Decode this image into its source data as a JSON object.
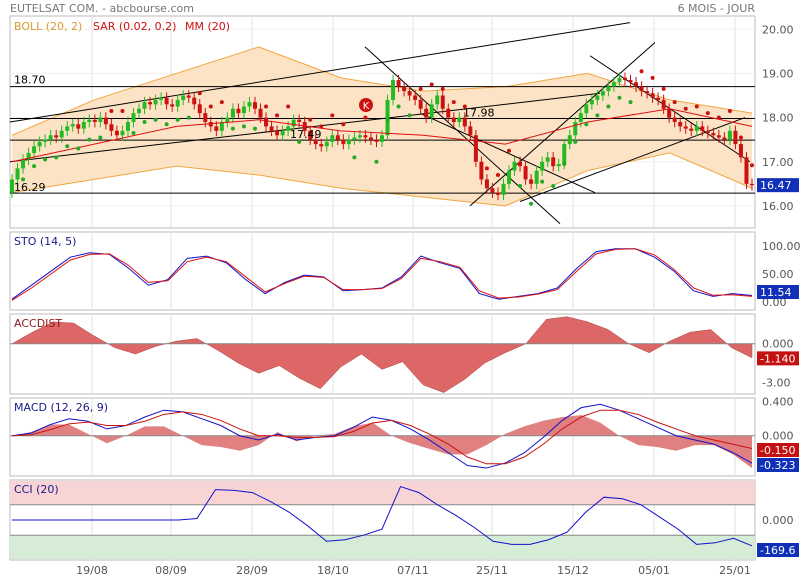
{
  "header": {
    "title": "EUTELSAT COM.",
    "source": "- abcbourse.com",
    "period": "6 MOIS - JOUR"
  },
  "colors": {
    "up": "#22bb22",
    "down": "#cc1111",
    "boll_fill": "#fde3c6",
    "boll_line": "#f0a640",
    "sar": "#cc1111",
    "sar_up": "#22aa22",
    "mm": "#dd1111",
    "sto_k": "#1111cc",
    "sto_d": "#dd1111",
    "accdist_fill": "#dd6666",
    "macd_line": "#1111cc",
    "signal_line": "#cc1111",
    "hist_fill": "#e08080",
    "cci_line": "#1111cc",
    "cci_over": "#f8d4d4",
    "cci_under": "#d6ecd6",
    "badge_blue": "#1030b8",
    "badge_red": "#c41010"
  },
  "x_labels": [
    "19/08",
    "08/09",
    "28/09",
    "18/10",
    "07/11",
    "25/11",
    "15/12",
    "05/01",
    "25/01"
  ],
  "chart_data": [
    {
      "type": "candlestick",
      "title": "EUTELSAT COM.",
      "legend": [
        "BOLL (20, 2)",
        "SAR (0.02, 0.2)",
        "MM (20)"
      ],
      "y_ticks": [
        "20.00",
        "19.00",
        "18.00",
        "17.00",
        "16.00"
      ],
      "ylim": [
        15.5,
        20.3
      ],
      "last_value": "16.47",
      "annotations": [
        "18.70",
        "17.98",
        "17.49",
        "16.29",
        "K"
      ],
      "horizontal_levels": [
        18.7,
        17.98,
        17.49,
        16.29
      ],
      "close": [
        16.6,
        16.85,
        17.05,
        17.2,
        17.35,
        17.45,
        17.5,
        17.6,
        17.55,
        17.7,
        17.8,
        17.85,
        17.75,
        17.9,
        17.95,
        17.9,
        18.0,
        17.85,
        17.7,
        17.6,
        17.7,
        17.9,
        18.1,
        18.2,
        18.35,
        18.3,
        18.4,
        18.45,
        18.3,
        18.25,
        18.4,
        18.5,
        18.45,
        18.3,
        18.1,
        17.9,
        17.8,
        17.7,
        17.9,
        18.0,
        18.2,
        18.1,
        18.25,
        18.35,
        18.2,
        18.0,
        17.8,
        17.7,
        17.6,
        17.7,
        17.8,
        17.95,
        17.9,
        17.7,
        17.5,
        17.4,
        17.35,
        17.45,
        17.6,
        17.5,
        17.4,
        17.5,
        17.55,
        17.6,
        17.55,
        17.5,
        17.45,
        17.6,
        18.4,
        18.85,
        18.7,
        18.6,
        18.5,
        18.4,
        18.2,
        18.0,
        18.3,
        18.5,
        18.2,
        18.0,
        17.9,
        18.0,
        17.8,
        17.6,
        17.0,
        16.6,
        16.4,
        16.3,
        16.25,
        16.5,
        16.8,
        17.0,
        16.9,
        16.6,
        16.5,
        16.8,
        17.0,
        17.1,
        16.9,
        16.95,
        17.4,
        17.6,
        17.9,
        18.1,
        18.3,
        18.4,
        18.5,
        18.6,
        18.7,
        18.8,
        18.9,
        18.85,
        18.8,
        18.7,
        18.6,
        18.55,
        18.45,
        18.4,
        18.2,
        18.0,
        17.9,
        17.8,
        17.75,
        17.7,
        17.8,
        17.7,
        17.65,
        17.6,
        17.55,
        17.5,
        17.7,
        17.4,
        17.1,
        16.5,
        16.47
      ],
      "bollinger": {
        "upper": [
          17.6,
          18.4,
          19.0,
          19.6,
          18.9,
          18.6,
          18.7,
          19.0,
          18.4,
          18.1
        ],
        "middle": [
          17.0,
          17.4,
          17.8,
          17.95,
          17.7,
          17.6,
          17.4,
          17.9,
          18.2,
          17.8
        ],
        "lower": [
          16.3,
          16.6,
          16.9,
          16.7,
          16.4,
          16.2,
          16.0,
          16.8,
          17.2,
          16.4
        ]
      }
    },
    {
      "type": "line",
      "title": "STO (14, 5)",
      "y_ticks": [
        "100.00",
        "50.00",
        "0.00"
      ],
      "ylim": [
        0,
        100
      ],
      "last_value": "11.54",
      "series": [
        {
          "name": "K",
          "values": [
            5,
            30,
            55,
            80,
            88,
            85,
            60,
            30,
            40,
            78,
            82,
            70,
            40,
            15,
            35,
            48,
            45,
            20,
            22,
            25,
            45,
            82,
            70,
            60,
            15,
            5,
            10,
            15,
            25,
            60,
            90,
            95,
            95,
            80,
            55,
            20,
            10,
            15,
            11.54
          ]
        },
        {
          "name": "D",
          "values": [
            3,
            25,
            50,
            75,
            85,
            86,
            65,
            35,
            38,
            72,
            80,
            72,
            45,
            18,
            33,
            46,
            44,
            22,
            22,
            24,
            42,
            78,
            72,
            62,
            20,
            7,
            9,
            14,
            22,
            55,
            86,
            94,
            95,
            84,
            58,
            25,
            12,
            13,
            10
          ]
        }
      ]
    },
    {
      "type": "area",
      "title": "ACCDIST",
      "y_ticks": [
        "0.000",
        "-1.140",
        "-3.00"
      ],
      "ylim": [
        -3.6,
        2.0
      ],
      "last_value": "-1.140",
      "values": [
        0.0,
        0.9,
        1.7,
        1.6,
        0.6,
        -0.3,
        -0.8,
        -0.2,
        0.2,
        0.4,
        -0.5,
        -1.5,
        -2.3,
        -1.7,
        -2.7,
        -3.5,
        -1.8,
        -0.8,
        -2.0,
        -1.4,
        -3.2,
        -3.8,
        -2.8,
        -1.5,
        -0.7,
        0.0,
        1.9,
        2.1,
        1.7,
        1.1,
        0.0,
        -0.7,
        0.2,
        0.9,
        1.1,
        -0.3,
        -1.1
      ]
    },
    {
      "type": "line",
      "title": "MACD (12, 26, 9)",
      "y_ticks": [
        "0.400",
        "0.000"
      ],
      "ylim": [
        -0.45,
        0.42
      ],
      "last_value": "-0.323",
      "signal_value": "-0.150",
      "series": [
        {
          "name": "MACD",
          "values": [
            0.0,
            0.03,
            0.13,
            0.2,
            0.17,
            0.08,
            0.12,
            0.22,
            0.3,
            0.28,
            0.2,
            0.12,
            0.0,
            -0.05,
            0.02,
            -0.05,
            -0.02,
            0.0,
            0.1,
            0.22,
            0.18,
            0.08,
            -0.05,
            -0.2,
            -0.35,
            -0.38,
            -0.32,
            -0.2,
            -0.02,
            0.18,
            0.33,
            0.37,
            0.3,
            0.2,
            0.1,
            0.0,
            -0.05,
            -0.1,
            -0.2,
            -0.323
          ]
        },
        {
          "name": "Signal",
          "values": [
            0.0,
            0.01,
            0.07,
            0.14,
            0.16,
            0.12,
            0.12,
            0.17,
            0.25,
            0.28,
            0.25,
            0.18,
            0.08,
            0.0,
            0.0,
            -0.02,
            -0.02,
            -0.01,
            0.05,
            0.15,
            0.18,
            0.12,
            0.02,
            -0.1,
            -0.25,
            -0.33,
            -0.33,
            -0.25,
            -0.1,
            0.08,
            0.22,
            0.3,
            0.3,
            0.25,
            0.16,
            0.08,
            0.0,
            -0.05,
            -0.1,
            -0.15
          ]
        }
      ]
    },
    {
      "type": "line",
      "title": "CCI (20)",
      "y_ticks": [
        "0.000"
      ],
      "ylim": [
        -250,
        250
      ],
      "last_value": "-169.6",
      "values": [
        0,
        0,
        0,
        0,
        0,
        0,
        0,
        0,
        0,
        0,
        10,
        200,
        195,
        180,
        120,
        50,
        -40,
        -140,
        -130,
        -100,
        -60,
        220,
        180,
        100,
        30,
        -50,
        -140,
        -160,
        -160,
        -130,
        -80,
        50,
        150,
        140,
        100,
        20,
        -60,
        -160,
        -150,
        -120,
        -169.6
      ]
    }
  ]
}
